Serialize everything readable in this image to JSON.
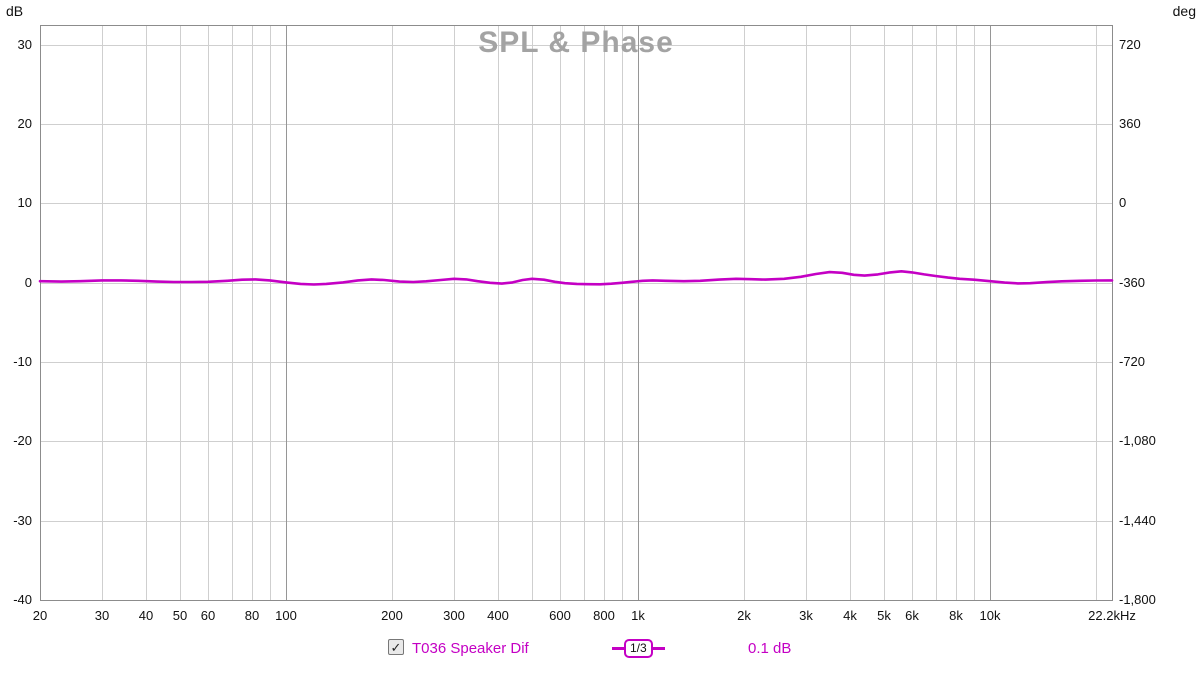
{
  "title": "SPL & Phase",
  "icons": {
    "checkmark": "✓"
  },
  "axes": {
    "left_unit": "dB",
    "right_unit": "deg",
    "left_ticks": [
      {
        "value": 30,
        "label": "30"
      },
      {
        "value": 20,
        "label": "20"
      },
      {
        "value": 10,
        "label": "10"
      },
      {
        "value": 0,
        "label": "0"
      },
      {
        "value": -10,
        "label": "-10"
      },
      {
        "value": -20,
        "label": "-20"
      },
      {
        "value": -30,
        "label": "-30"
      },
      {
        "value": -40,
        "label": "-40"
      }
    ],
    "right_ticks": [
      {
        "value": 30,
        "label": "720"
      },
      {
        "value": 20,
        "label": "360"
      },
      {
        "value": 10,
        "label": "0"
      },
      {
        "value": 0,
        "label": "-360"
      },
      {
        "value": -10,
        "label": "-720"
      },
      {
        "value": -20,
        "label": "-1,080"
      },
      {
        "value": -30,
        "label": "-1,440"
      },
      {
        "value": -40,
        "label": "-1,800"
      }
    ],
    "x_ticks": [
      {
        "f": 20,
        "label": "20"
      },
      {
        "f": 30,
        "label": "30"
      },
      {
        "f": 40,
        "label": "40"
      },
      {
        "f": 50,
        "label": "50"
      },
      {
        "f": 60,
        "label": "60"
      },
      {
        "f": 80,
        "label": "80"
      },
      {
        "f": 100,
        "label": "100"
      },
      {
        "f": 200,
        "label": "200"
      },
      {
        "f": 300,
        "label": "300"
      },
      {
        "f": 400,
        "label": "400"
      },
      {
        "f": 600,
        "label": "600"
      },
      {
        "f": 800,
        "label": "800"
      },
      {
        "f": 1000,
        "label": "1k"
      },
      {
        "f": 2000,
        "label": "2k"
      },
      {
        "f": 3000,
        "label": "3k"
      },
      {
        "f": 4000,
        "label": "4k"
      },
      {
        "f": 5000,
        "label": "5k"
      },
      {
        "f": 6000,
        "label": "6k"
      },
      {
        "f": 8000,
        "label": "8k"
      },
      {
        "f": 10000,
        "label": "10k"
      },
      {
        "f": 22200,
        "label": "22.2kHz"
      }
    ],
    "x_grid_minor": [
      20,
      30,
      40,
      50,
      60,
      70,
      80,
      90,
      200,
      300,
      400,
      500,
      600,
      700,
      800,
      900,
      2000,
      3000,
      4000,
      5000,
      6000,
      7000,
      8000,
      9000,
      20000
    ],
    "x_grid_major": [
      100,
      1000,
      10000
    ]
  },
  "legend": {
    "checkbox_checked": true,
    "trace_label": "T036 Speaker Dif",
    "smoothing_label": "1/3",
    "value_label": "0.1 dB"
  },
  "colors": {
    "trace": "#c400c4",
    "grid_minor": "#cfcfcf",
    "grid_major": "#969696",
    "border": "#8c8c8c",
    "title": "#a3a3a3",
    "tick_text": "#111111"
  },
  "chart_data": {
    "type": "line",
    "title": "SPL & Phase",
    "x_scale": "log",
    "x_unit": "Hz",
    "y_left_unit": "dB",
    "y_right_unit": "deg",
    "x_range": [
      20,
      22200
    ],
    "y_range_db": [
      -40,
      32.5
    ],
    "y_right_range_deg": [
      -1800,
      720
    ],
    "grid": true,
    "legend_position": "bottom",
    "series": [
      {
        "name": "T036 Speaker Dif",
        "color": "#c400c4",
        "smoothing": "1/3",
        "x": [
          20,
          23,
          26,
          30,
          34,
          38,
          43,
          48,
          54,
          60,
          68,
          75,
          82,
          90,
          100,
          110,
          120,
          130,
          145,
          160,
          175,
          190,
          210,
          230,
          250,
          275,
          300,
          325,
          350,
          380,
          410,
          440,
          470,
          500,
          540,
          580,
          620,
          670,
          720,
          780,
          840,
          900,
          960,
          1030,
          1100,
          1200,
          1350,
          1500,
          1700,
          1900,
          2100,
          2300,
          2600,
          2900,
          3200,
          3500,
          3800,
          4100,
          4400,
          4800,
          5200,
          5600,
          6000,
          6500,
          7000,
          7600,
          8200,
          9000,
          10000,
          11000,
          12000,
          13000,
          14500,
          16000,
          18000,
          20000,
          22200
        ],
        "y_db": [
          0.2,
          0.15,
          0.2,
          0.3,
          0.3,
          0.25,
          0.15,
          0.1,
          0.1,
          0.12,
          0.25,
          0.38,
          0.42,
          0.3,
          0.05,
          -0.15,
          -0.22,
          -0.15,
          0.05,
          0.3,
          0.42,
          0.35,
          0.15,
          0.1,
          0.18,
          0.35,
          0.5,
          0.42,
          0.2,
          0.0,
          -0.1,
          0.05,
          0.35,
          0.5,
          0.38,
          0.12,
          -0.05,
          -0.15,
          -0.18,
          -0.2,
          -0.12,
          0.0,
          0.12,
          0.25,
          0.3,
          0.25,
          0.2,
          0.25,
          0.4,
          0.5,
          0.45,
          0.4,
          0.5,
          0.75,
          1.1,
          1.35,
          1.25,
          1.0,
          0.9,
          1.05,
          1.3,
          1.45,
          1.3,
          1.05,
          0.85,
          0.65,
          0.5,
          0.38,
          0.2,
          0.02,
          -0.08,
          -0.05,
          0.08,
          0.18,
          0.25,
          0.28,
          0.3
        ]
      }
    ]
  }
}
